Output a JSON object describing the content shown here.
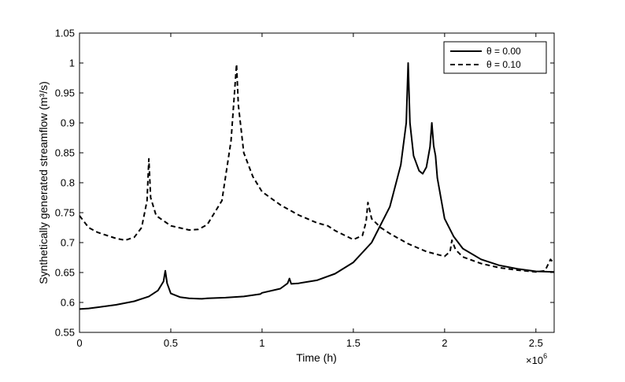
{
  "chart_data": {
    "type": "line",
    "xlabel": "Time (h)",
    "ylabel": "Synthetically generated streamflow (m³/s)",
    "x_multiplier": "×10",
    "x_multiplier_exp": "6",
    "xlim": [
      0,
      2.6
    ],
    "ylim": [
      0.55,
      1.05
    ],
    "x_ticks": [
      "0",
      "0.5",
      "1",
      "1.5",
      "2",
      "2.5"
    ],
    "x_tick_values": [
      0,
      0.5,
      1,
      1.5,
      2,
      2.5
    ],
    "y_ticks": [
      "0.55",
      "0.6",
      "0.65",
      "0.7",
      "0.75",
      "0.8",
      "0.85",
      "0.9",
      "0.95",
      "1",
      "1.05"
    ],
    "y_tick_values": [
      0.55,
      0.6,
      0.65,
      0.7,
      0.75,
      0.8,
      0.85,
      0.9,
      0.95,
      1.0,
      1.05
    ],
    "grid": false,
    "legend_position": "top-right",
    "series": [
      {
        "name": "θ = 0.00",
        "style": "solid",
        "color": "#000000",
        "x": [
          0,
          0.05,
          0.1,
          0.2,
          0.3,
          0.38,
          0.43,
          0.46,
          0.47,
          0.48,
          0.5,
          0.55,
          0.6,
          0.67,
          0.7,
          0.8,
          0.9,
          0.99,
          1.0,
          1.1,
          1.14,
          1.15,
          1.16,
          1.2,
          1.3,
          1.4,
          1.5,
          1.6,
          1.7,
          1.76,
          1.79,
          1.8,
          1.81,
          1.83,
          1.86,
          1.88,
          1.9,
          1.92,
          1.93,
          1.94,
          1.95,
          1.96,
          2.0,
          2.05,
          2.1,
          2.2,
          2.3,
          2.4,
          2.5,
          2.6
        ],
        "y": [
          0.589,
          0.59,
          0.592,
          0.596,
          0.602,
          0.61,
          0.62,
          0.635,
          0.653,
          0.632,
          0.615,
          0.609,
          0.607,
          0.606,
          0.607,
          0.608,
          0.61,
          0.614,
          0.616,
          0.623,
          0.632,
          0.64,
          0.631,
          0.632,
          0.637,
          0.648,
          0.667,
          0.7,
          0.76,
          0.83,
          0.9,
          1.0,
          0.9,
          0.845,
          0.82,
          0.815,
          0.826,
          0.86,
          0.9,
          0.862,
          0.845,
          0.808,
          0.74,
          0.71,
          0.69,
          0.672,
          0.662,
          0.656,
          0.652,
          0.651
        ]
      },
      {
        "name": "θ = 0.10",
        "style": "dashed",
        "color": "#000000",
        "x": [
          0,
          0.05,
          0.1,
          0.2,
          0.25,
          0.3,
          0.34,
          0.37,
          0.38,
          0.39,
          0.42,
          0.5,
          0.6,
          0.65,
          0.7,
          0.78,
          0.83,
          0.86,
          0.87,
          0.9,
          0.95,
          1.0,
          1.1,
          1.2,
          1.3,
          1.36,
          1.4,
          1.5,
          1.55,
          1.57,
          1.58,
          1.6,
          1.65,
          1.7,
          1.8,
          1.9,
          2.0,
          2.03,
          2.04,
          2.06,
          2.1,
          2.2,
          2.3,
          2.4,
          2.5,
          2.55,
          2.58,
          2.6
        ],
        "y": [
          0.745,
          0.725,
          0.717,
          0.707,
          0.704,
          0.709,
          0.725,
          0.77,
          0.84,
          0.775,
          0.745,
          0.728,
          0.721,
          0.722,
          0.73,
          0.77,
          0.87,
          0.998,
          0.93,
          0.85,
          0.81,
          0.785,
          0.763,
          0.746,
          0.733,
          0.728,
          0.72,
          0.705,
          0.712,
          0.735,
          0.767,
          0.74,
          0.725,
          0.715,
          0.698,
          0.685,
          0.677,
          0.685,
          0.704,
          0.688,
          0.676,
          0.665,
          0.658,
          0.654,
          0.651,
          0.653,
          0.672,
          0.665
        ]
      }
    ]
  }
}
